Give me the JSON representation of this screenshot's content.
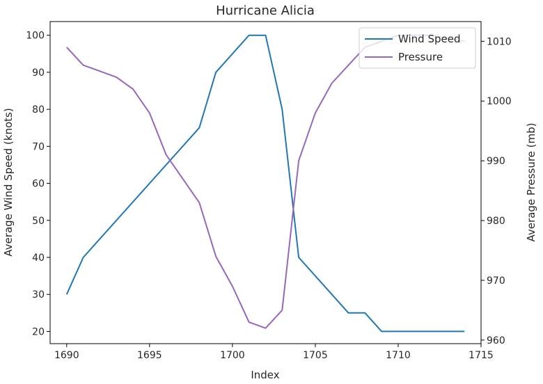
{
  "chart_data": {
    "type": "line",
    "title": "Hurricane Alicia",
    "xlabel": "Index",
    "ylabel_left": "Average Wind Speed (knots)",
    "ylabel_right": "Average Pressure (mb)",
    "xlim": [
      1689,
      1715
    ],
    "ylim_left": [
      16.7,
      103.7
    ],
    "ylim_right": [
      959.4,
      1013.3
    ],
    "x_ticks": [
      1690,
      1695,
      1700,
      1705,
      1710,
      1715
    ],
    "y_ticks_left": [
      20,
      30,
      40,
      50,
      60,
      70,
      80,
      90,
      100
    ],
    "y_ticks_right": [
      960,
      970,
      980,
      990,
      1000,
      1010
    ],
    "grid": false,
    "legend_position": "top-right",
    "series": [
      {
        "name": "Wind Speed",
        "axis": "left",
        "color": "#1f77b4",
        "x": [
          1690,
          1691,
          1698,
          1699,
          1701,
          1702,
          1703,
          1704,
          1707,
          1708,
          1709,
          1714
        ],
        "values": [
          30,
          40,
          75,
          90,
          100,
          100,
          80,
          40,
          25,
          25,
          20,
          20
        ]
      },
      {
        "name": "Pressure",
        "axis": "right",
        "color": "#9467bd",
        "x": [
          1690,
          1691,
          1693,
          1694,
          1695,
          1696,
          1698,
          1699,
          1700,
          1701,
          1702,
          1703,
          1704,
          1705,
          1706,
          1708,
          1710,
          1712,
          1714
        ],
        "values": [
          1009,
          1006,
          1004,
          1002,
          998,
          991,
          983,
          974,
          969,
          963,
          962,
          965,
          990,
          998,
          1003,
          1009,
          1011,
          1011,
          1010
        ]
      }
    ]
  }
}
